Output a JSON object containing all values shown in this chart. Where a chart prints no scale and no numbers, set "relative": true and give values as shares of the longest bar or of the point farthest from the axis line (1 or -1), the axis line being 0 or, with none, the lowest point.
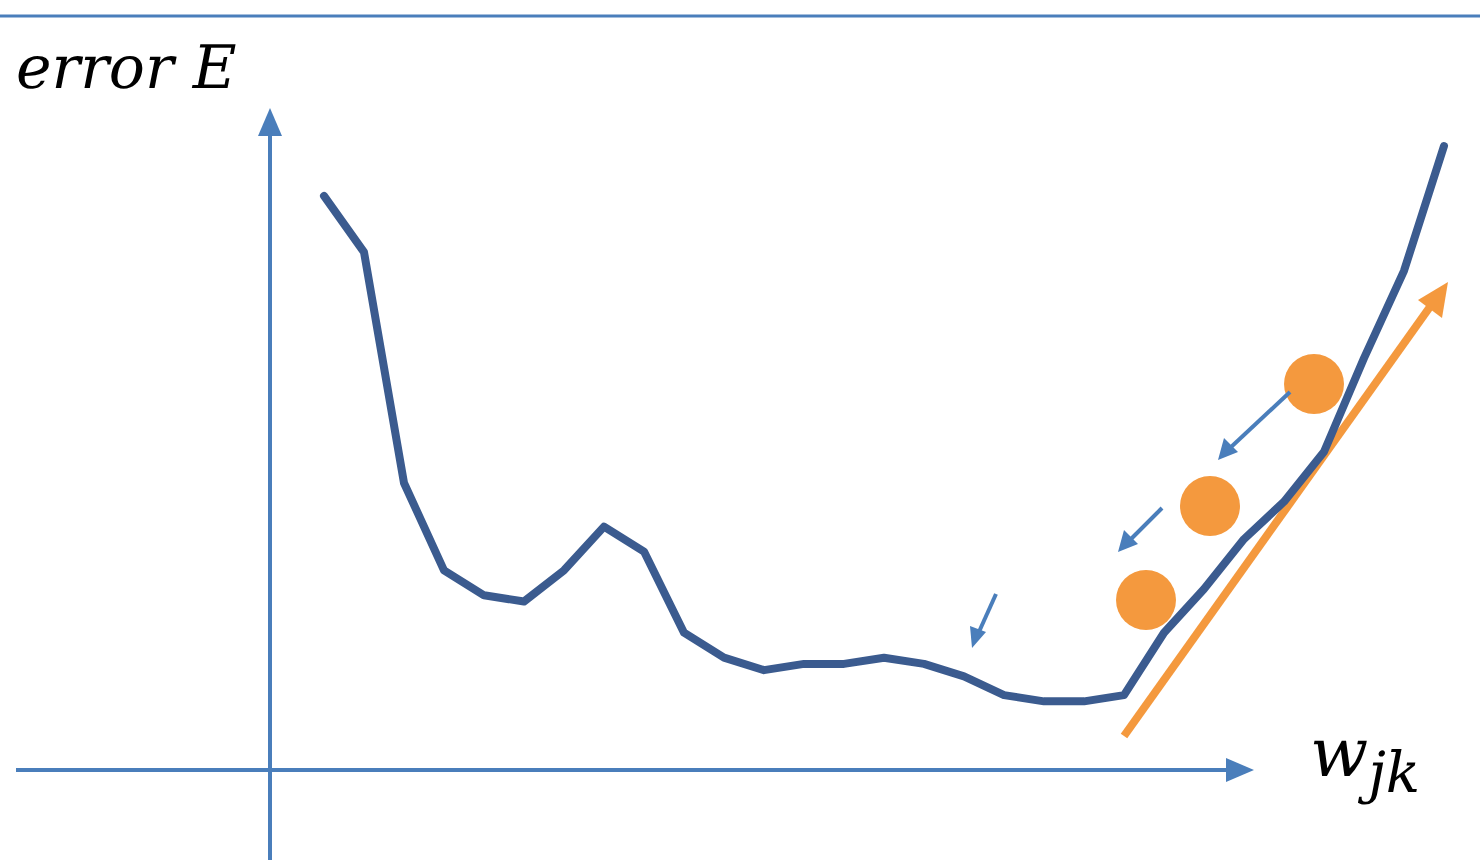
{
  "chart_data": {
    "type": "line",
    "relative": true,
    "xlabel": "w$_{jk}$",
    "ylabel": "error E",
    "categories": [
      null,
      null,
      null,
      null,
      null,
      null,
      null,
      null,
      null,
      null,
      null,
      null,
      null,
      null,
      null,
      null,
      null,
      null,
      null,
      null,
      null,
      null,
      null,
      null,
      null,
      null,
      null,
      null,
      null
    ],
    "series": [
      {
        "color": "#3b5b8f",
        "values": [
          0.92,
          0.83,
          0.46,
          0.32,
          0.28,
          0.27,
          0.32,
          0.39,
          0.35,
          0.22,
          0.18,
          0.16,
          0.17,
          0.17,
          0.18,
          0.17,
          0.15,
          0.12,
          0.11,
          0.11,
          0.12,
          0.22,
          0.29,
          0.37,
          0.43,
          0.51,
          0.66,
          0.8,
          1.0
        ]
      }
    ]
  }
}
